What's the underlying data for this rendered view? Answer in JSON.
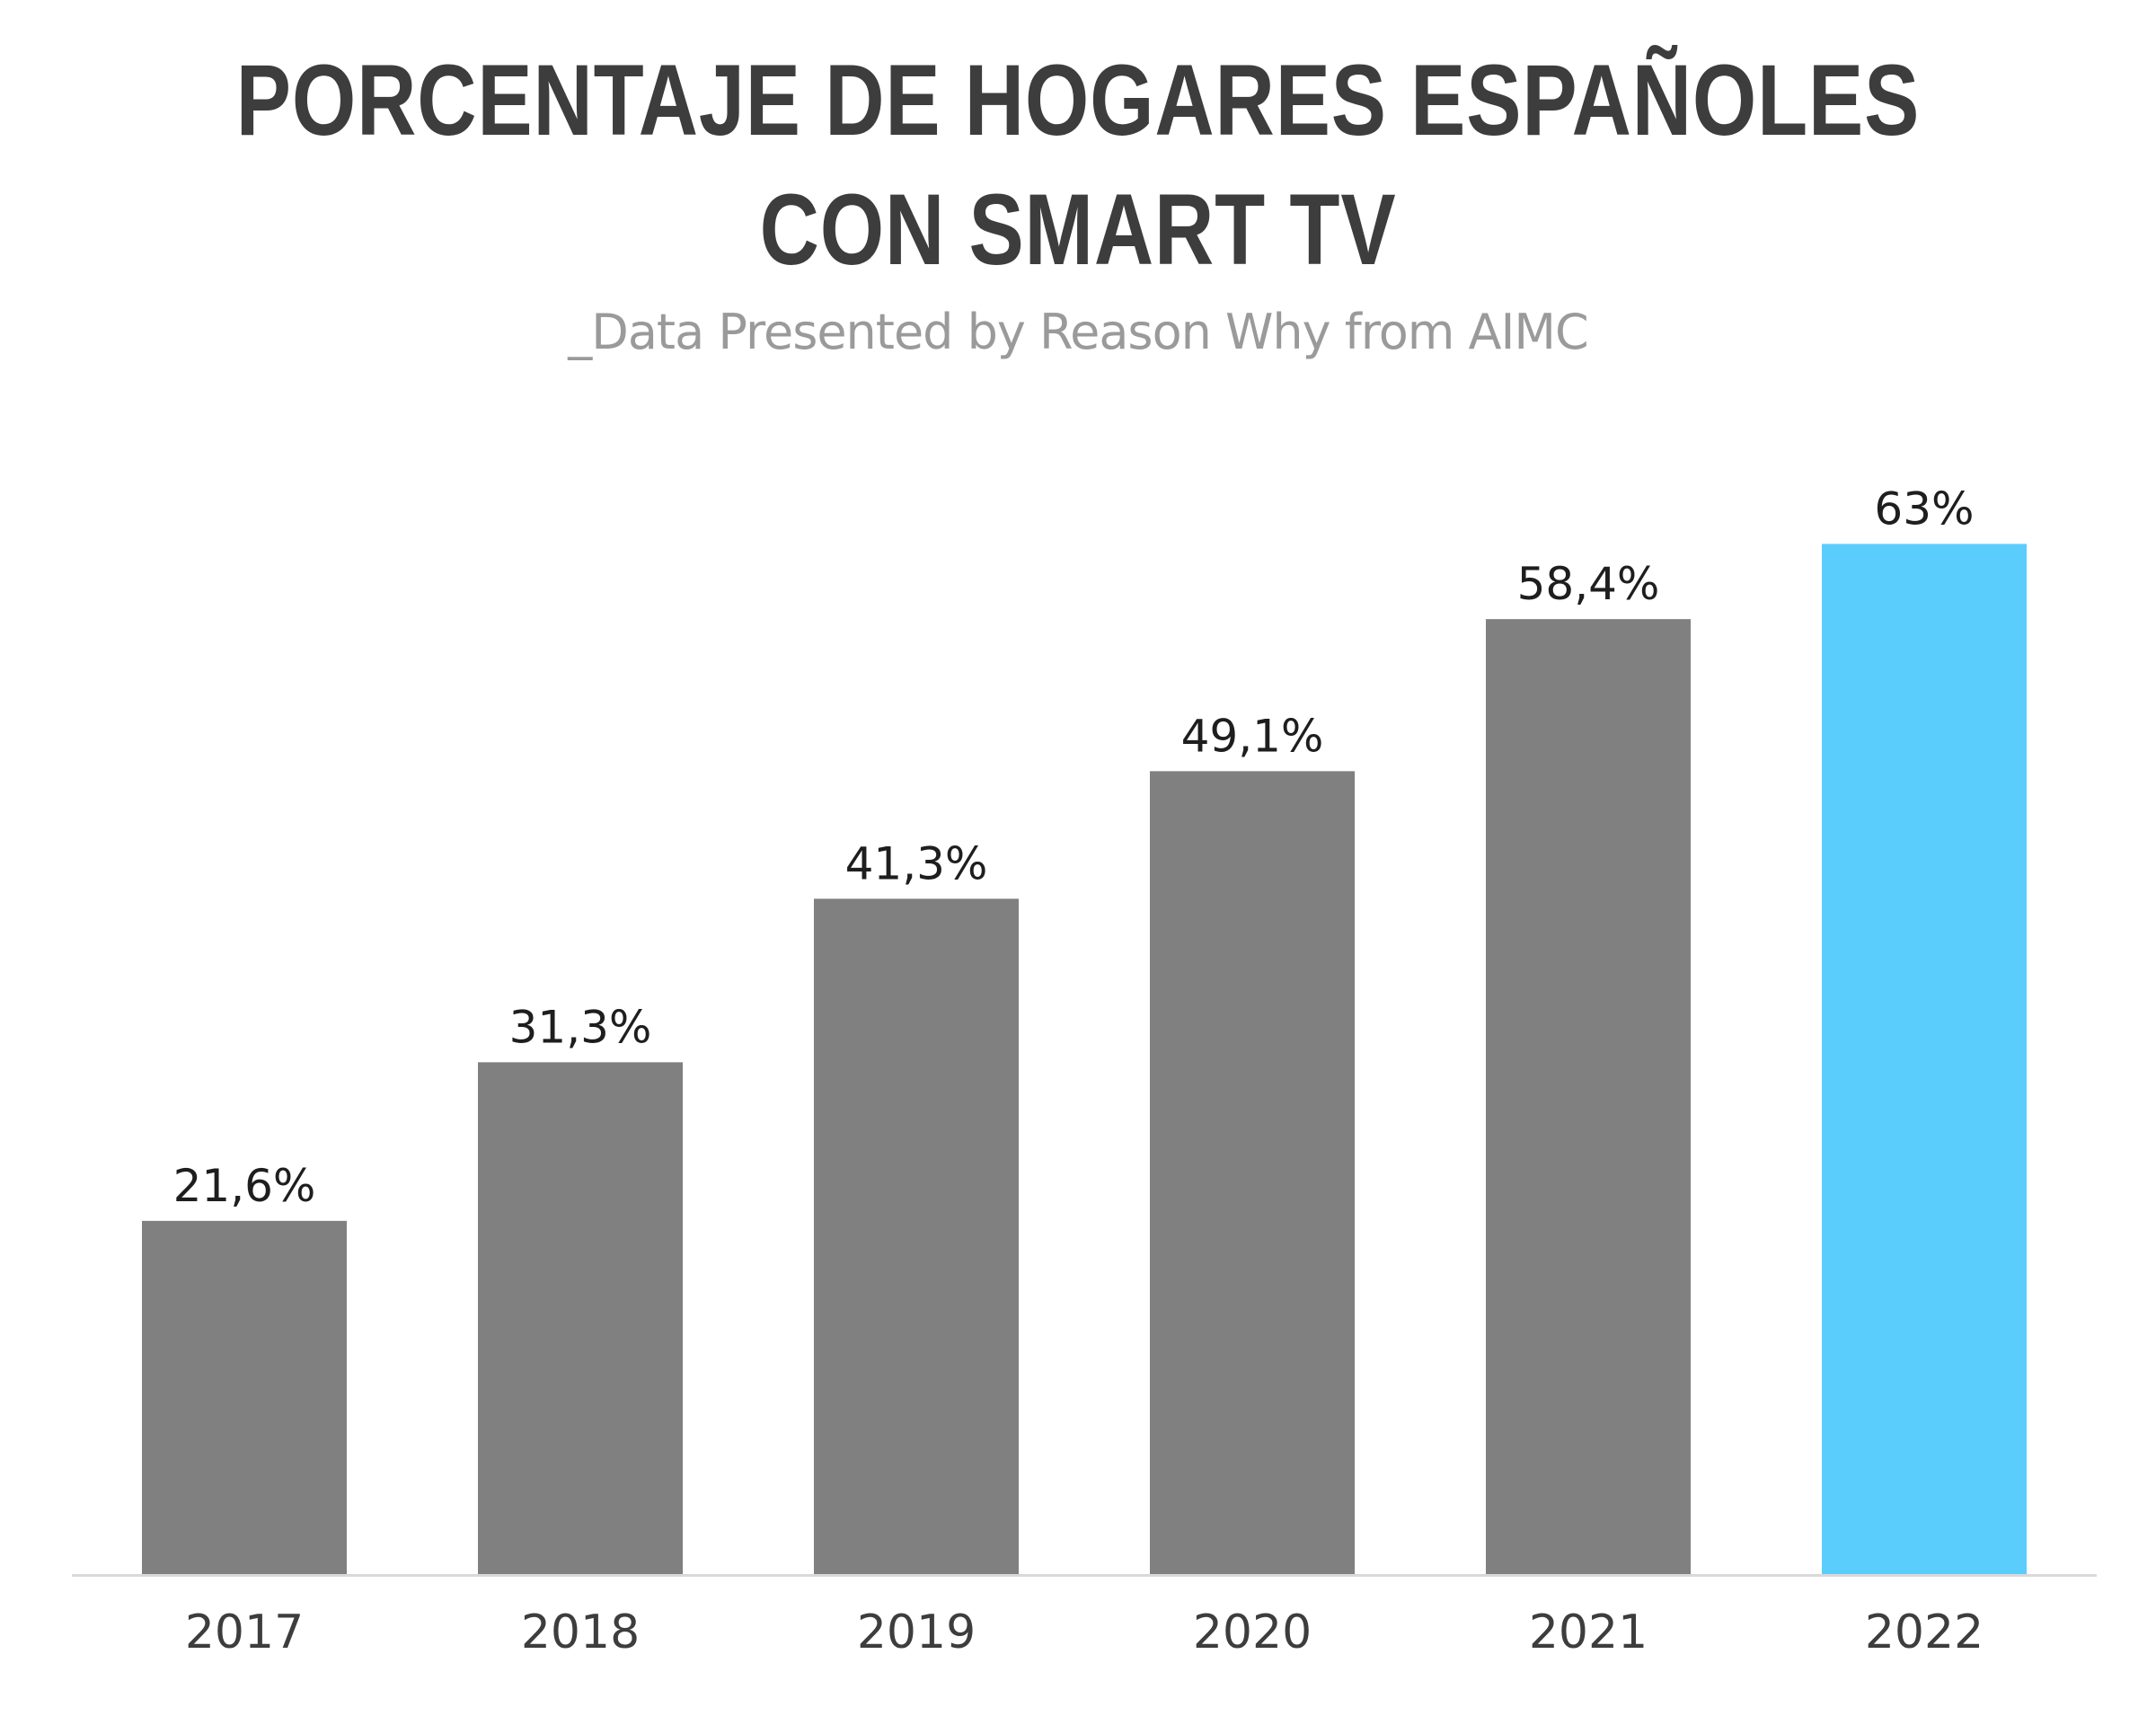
{
  "title_line1": "PORCENTAJE DE HOGARES ESPAÑOLES",
  "title_line2": "CON SMART TV",
  "subtitle": "_Data Presented by Reason Why from AIMC",
  "colors": {
    "bar_default": "#808080",
    "bar_highlight": "#5bcdfc",
    "axis": "#d9d9d9"
  },
  "chart_data": {
    "type": "bar",
    "title": "PORCENTAJE DE HOGARES ESPAÑOLES CON SMART TV",
    "subtitle": "_Data Presented by Reason Why from AIMC",
    "categories": [
      "2017",
      "2018",
      "2019",
      "2020",
      "2021",
      "2022"
    ],
    "values": [
      21.6,
      31.3,
      41.3,
      49.1,
      58.4,
      63
    ],
    "value_labels": [
      "21,6%",
      "31,3%",
      "41,3%",
      "49,1%",
      "58,4%",
      "63%"
    ],
    "highlight_index": 5,
    "ylim": [
      0,
      65
    ],
    "grid": false,
    "legend": "none"
  }
}
